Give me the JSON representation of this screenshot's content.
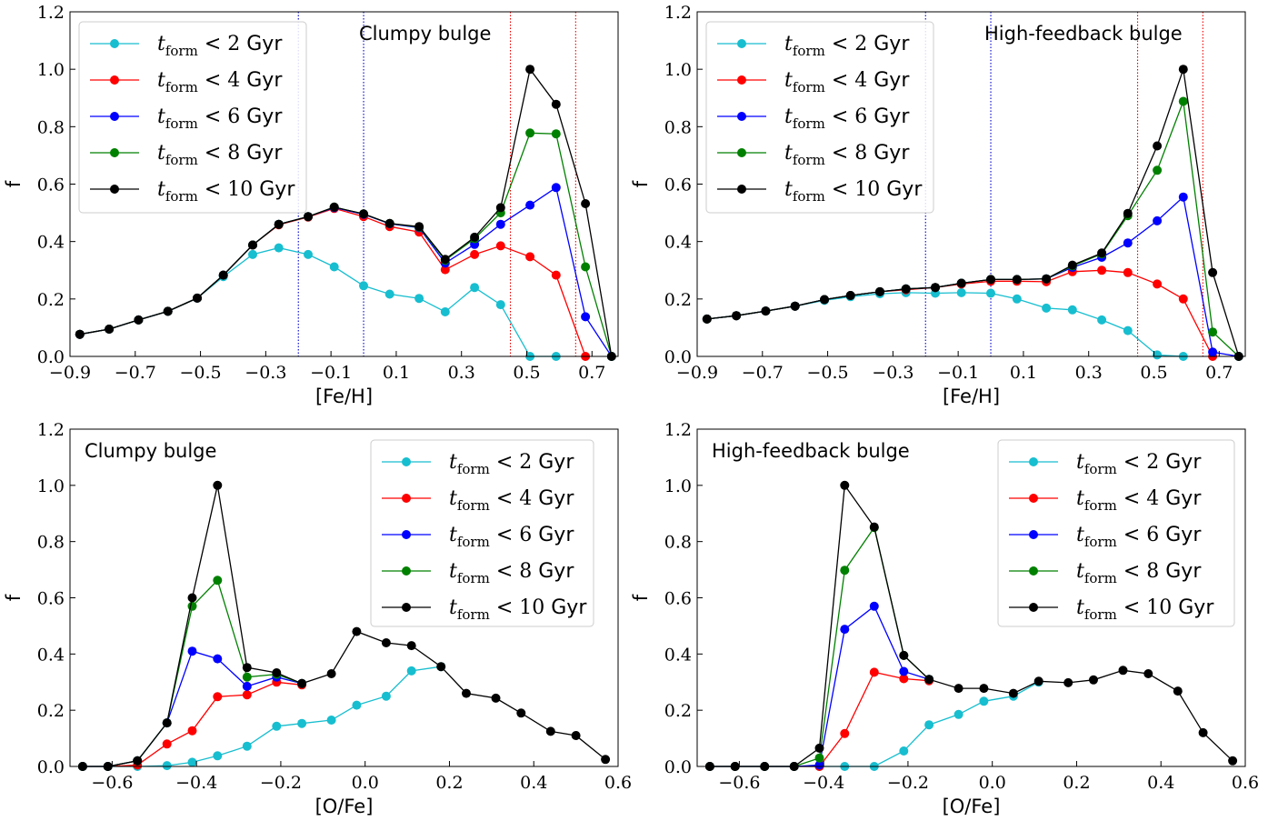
{
  "figure": {
    "colors": {
      "t2": "#17becf",
      "t4": "#ff0000",
      "t6": "#0000ff",
      "t8": "#008000",
      "t10": "#000000",
      "feh_line": "#0000cc",
      "feh_red_line": "#ee0000"
    }
  },
  "chart_data": [
    {
      "type": "line",
      "title": "Clumpy bulge",
      "xlabel": "[Fe/H]",
      "ylabel": "f",
      "xlim": [
        -0.9,
        0.78
      ],
      "ylim": [
        0,
        1.2
      ],
      "xticks": [
        -0.9,
        -0.7,
        -0.5,
        -0.3,
        -0.1,
        0.1,
        0.3,
        0.5,
        0.7
      ],
      "xtick_labels": [
        "−0.9",
        "−0.7",
        "−0.5",
        "−0.3",
        "−0.1",
        "0.1",
        "0.3",
        "0.5",
        "0.7"
      ],
      "yticks": [
        0,
        0.2,
        0.4,
        0.6,
        0.8,
        1.0,
        1.2
      ],
      "ytick_labels": [
        "0.0",
        "0.2",
        "0.4",
        "0.6",
        "0.8",
        "1.0",
        "1.2"
      ],
      "legend_position": "top-left",
      "vlines": [
        {
          "x": -0.2,
          "color": "feh_line"
        },
        {
          "x": 0.0,
          "color": "feh_line"
        },
        {
          "x": 0.45,
          "color": "feh_red_line"
        },
        {
          "x": 0.65,
          "color": "feh_red_line"
        }
      ],
      "x": [
        -0.87,
        -0.78,
        -0.69,
        -0.6,
        -0.51,
        -0.43,
        -0.34,
        -0.26,
        -0.17,
        -0.09,
        0.0,
        0.08,
        0.17,
        0.25,
        0.34,
        0.42,
        0.51,
        0.59,
        0.68,
        0.76
      ],
      "series": [
        {
          "name": "t2",
          "label_main": "t",
          "label_sub": "form",
          "label_rest": " < 2 ",
          "label_unit": "Gyr",
          "color": "t2",
          "values": [
            0.077,
            0.095,
            0.127,
            0.157,
            0.203,
            0.278,
            0.355,
            0.378,
            0.355,
            0.312,
            0.246,
            0.217,
            0.202,
            0.155,
            0.24,
            0.18,
            0.0,
            0.0,
            null,
            null
          ]
        },
        {
          "name": "t4",
          "label_main": "t",
          "label_sub": "form",
          "label_rest": " < 4 ",
          "label_unit": "Gyr",
          "color": "t4",
          "values": [
            0.077,
            0.095,
            0.127,
            0.157,
            0.203,
            0.283,
            0.388,
            0.458,
            0.485,
            0.515,
            0.487,
            0.452,
            0.433,
            0.302,
            0.355,
            0.385,
            0.347,
            0.283,
            0.0,
            null
          ]
        },
        {
          "name": "t6",
          "label_main": "t",
          "label_sub": "form",
          "label_rest": " < 6 ",
          "label_unit": "Gyr",
          "color": "t6",
          "values": [
            0.077,
            0.095,
            0.127,
            0.157,
            0.203,
            0.283,
            0.388,
            0.46,
            0.487,
            0.518,
            0.495,
            0.462,
            0.448,
            0.325,
            0.39,
            0.46,
            0.527,
            0.588,
            0.138,
            0.0
          ]
        },
        {
          "name": "t8",
          "label_main": "t",
          "label_sub": "form",
          "label_rest": " < 8 ",
          "label_unit": "Gyr",
          "color": "t8",
          "values": [
            0.077,
            0.095,
            0.127,
            0.157,
            0.203,
            0.283,
            0.388,
            0.46,
            0.487,
            0.52,
            0.496,
            0.463,
            0.45,
            0.335,
            0.41,
            0.5,
            0.778,
            0.775,
            0.312,
            0.0
          ]
        },
        {
          "name": "t10",
          "label_main": "t",
          "label_sub": "form",
          "label_rest": " < 10 ",
          "label_unit": "Gyr",
          "color": "t10",
          "values": [
            0.077,
            0.095,
            0.127,
            0.157,
            0.203,
            0.283,
            0.388,
            0.46,
            0.487,
            0.52,
            0.496,
            0.463,
            0.452,
            0.338,
            0.415,
            0.518,
            1.0,
            0.878,
            0.532,
            0.0
          ]
        }
      ]
    },
    {
      "type": "line",
      "title": "High-feedback bulge",
      "xlabel": "[Fe/H]",
      "ylabel": "f",
      "xlim": [
        -0.9,
        0.78
      ],
      "ylim": [
        0,
        1.2
      ],
      "xticks": [
        -0.9,
        -0.7,
        -0.5,
        -0.3,
        -0.1,
        0.1,
        0.3,
        0.5,
        0.7
      ],
      "xtick_labels": [
        "−0.9",
        "−0.7",
        "−0.5",
        "−0.3",
        "−0.1",
        "0.1",
        "0.3",
        "0.5",
        "0.7"
      ],
      "yticks": [
        0,
        0.2,
        0.4,
        0.6,
        0.8,
        1.0,
        1.2
      ],
      "ytick_labels": [
        "0.0",
        "0.2",
        "0.4",
        "0.6",
        "0.8",
        "1.0",
        "1.2"
      ],
      "legend_position": "top-left",
      "vlines": [
        {
          "x": -0.2,
          "color": "feh_line"
        },
        {
          "x": 0.0,
          "color": "feh_line"
        },
        {
          "x": 0.45,
          "color": "feh_red_line"
        },
        {
          "x": 0.65,
          "color": "feh_red_line"
        }
      ],
      "x": [
        -0.87,
        -0.78,
        -0.69,
        -0.6,
        -0.51,
        -0.43,
        -0.34,
        -0.26,
        -0.17,
        -0.09,
        0.0,
        0.08,
        0.17,
        0.25,
        0.34,
        0.42,
        0.51,
        0.59,
        0.68,
        0.76
      ],
      "series": [
        {
          "name": "t2",
          "label_main": "t",
          "label_sub": "form",
          "label_rest": " < 2 ",
          "label_unit": "Gyr",
          "color": "t2",
          "values": [
            0.13,
            0.142,
            0.158,
            0.175,
            0.195,
            0.208,
            0.218,
            0.222,
            0.22,
            0.222,
            0.22,
            0.2,
            0.168,
            0.162,
            0.127,
            0.09,
            0.005,
            0.0,
            null,
            null
          ]
        },
        {
          "name": "t4",
          "label_main": "t",
          "label_sub": "form",
          "label_rest": " < 4 ",
          "label_unit": "Gyr",
          "color": "t4",
          "values": [
            0.13,
            0.142,
            0.158,
            0.175,
            0.198,
            0.212,
            0.225,
            0.232,
            0.24,
            0.252,
            0.262,
            0.262,
            0.26,
            0.295,
            0.3,
            0.292,
            0.252,
            0.2,
            0.0,
            null
          ]
        },
        {
          "name": "t6",
          "label_main": "t",
          "label_sub": "form",
          "label_rest": " < 6 ",
          "label_unit": "Gyr",
          "color": "t6",
          "values": [
            0.13,
            0.142,
            0.158,
            0.175,
            0.198,
            0.212,
            0.225,
            0.235,
            0.24,
            0.255,
            0.268,
            0.268,
            0.27,
            0.31,
            0.345,
            0.395,
            0.472,
            0.555,
            0.015,
            0.0
          ]
        },
        {
          "name": "t8",
          "label_main": "t",
          "label_sub": "form",
          "label_rest": " < 8 ",
          "label_unit": "Gyr",
          "color": "t8",
          "values": [
            0.13,
            0.142,
            0.158,
            0.175,
            0.198,
            0.212,
            0.225,
            0.235,
            0.24,
            0.255,
            0.268,
            0.268,
            0.27,
            0.315,
            0.357,
            0.49,
            0.648,
            0.888,
            0.085,
            0.0
          ]
        },
        {
          "name": "t10",
          "label_main": "t",
          "label_sub": "form",
          "label_rest": " < 10 ",
          "label_unit": "Gyr",
          "color": "t10",
          "values": [
            0.13,
            0.142,
            0.158,
            0.175,
            0.198,
            0.212,
            0.225,
            0.235,
            0.24,
            0.255,
            0.268,
            0.268,
            0.27,
            0.318,
            0.36,
            0.498,
            0.733,
            1.0,
            0.292,
            0.0
          ]
        }
      ]
    },
    {
      "type": "line",
      "title": "Clumpy bulge",
      "xlabel": "[O/Fe]",
      "ylabel": "f",
      "xlim": [
        -0.7,
        0.6
      ],
      "ylim": [
        0,
        1.2
      ],
      "xticks": [
        -0.6,
        -0.4,
        -0.2,
        0.0,
        0.2,
        0.4,
        0.6
      ],
      "xtick_labels": [
        "−0.6",
        "−0.4",
        "−0.2",
        "0.0",
        "0.2",
        "0.4",
        "0.6"
      ],
      "yticks": [
        0,
        0.2,
        0.4,
        0.6,
        0.8,
        1.0,
        1.2
      ],
      "ytick_labels": [
        "0.0",
        "0.2",
        "0.4",
        "0.6",
        "0.8",
        "1.0",
        "1.2"
      ],
      "legend_position": "top-right",
      "vlines": [],
      "x": [
        -0.67,
        -0.61,
        -0.54,
        -0.47,
        -0.41,
        -0.35,
        -0.28,
        -0.21,
        -0.15,
        -0.08,
        -0.02,
        0.05,
        0.11,
        0.18,
        0.24,
        0.31,
        0.37,
        0.44,
        0.5,
        0.57
      ],
      "series": [
        {
          "name": "t2",
          "label_main": "t",
          "label_sub": "form",
          "label_rest": " < 2 ",
          "label_unit": "Gyr",
          "color": "t2",
          "values": [
            0.0,
            0.0,
            0.0,
            0.003,
            0.015,
            0.038,
            0.072,
            0.143,
            0.153,
            0.165,
            0.218,
            0.25,
            0.34,
            0.355,
            null,
            null,
            null,
            null,
            null,
            null
          ]
        },
        {
          "name": "t4",
          "label_main": "t",
          "label_sub": "form",
          "label_rest": " < 4 ",
          "label_unit": "Gyr",
          "color": "t4",
          "values": [
            0.0,
            0.0,
            0.005,
            0.08,
            0.127,
            0.248,
            0.255,
            0.3,
            0.29,
            null,
            null,
            null,
            null,
            null,
            null,
            null,
            null,
            null,
            null,
            null
          ]
        },
        {
          "name": "t6",
          "label_main": "t",
          "label_sub": "form",
          "label_rest": " < 6 ",
          "label_unit": "Gyr",
          "color": "t6",
          "values": [
            0.0,
            0.0,
            0.02,
            0.155,
            0.41,
            0.383,
            0.285,
            0.318,
            0.295,
            null,
            null,
            null,
            null,
            null,
            null,
            null,
            null,
            null,
            null,
            null
          ]
        },
        {
          "name": "t8",
          "label_main": "t",
          "label_sub": "form",
          "label_rest": " < 8 ",
          "label_unit": "Gyr",
          "color": "t8",
          "values": [
            0.0,
            0.0,
            0.02,
            0.155,
            0.57,
            0.662,
            0.318,
            0.328,
            0.295,
            null,
            null,
            null,
            null,
            null,
            null,
            null,
            null,
            null,
            null,
            null
          ]
        },
        {
          "name": "t10",
          "label_main": "t",
          "label_sub": "form",
          "label_rest": " < 10 ",
          "label_unit": "Gyr",
          "color": "t10",
          "values": [
            0.0,
            0.0,
            0.02,
            0.155,
            0.6,
            1.0,
            0.352,
            0.333,
            0.295,
            0.33,
            0.48,
            0.44,
            0.43,
            0.355,
            0.26,
            0.243,
            0.19,
            0.125,
            0.11,
            0.025
          ]
        }
      ]
    },
    {
      "type": "line",
      "title": "High-feedback bulge",
      "xlabel": "[O/Fe]",
      "ylabel": "f",
      "xlim": [
        -0.7,
        0.6
      ],
      "ylim": [
        0,
        1.2
      ],
      "xticks": [
        -0.6,
        -0.4,
        -0.2,
        0.0,
        0.2,
        0.4,
        0.6
      ],
      "xtick_labels": [
        "−0.6",
        "−0.4",
        "−0.2",
        "0.0",
        "0.2",
        "0.4",
        "0.6"
      ],
      "yticks": [
        0,
        0.2,
        0.4,
        0.6,
        0.8,
        1.0,
        1.2
      ],
      "ytick_labels": [
        "0.0",
        "0.2",
        "0.4",
        "0.6",
        "0.8",
        "1.0",
        "1.2"
      ],
      "legend_position": "top-right",
      "vlines": [],
      "x": [
        -0.67,
        -0.61,
        -0.54,
        -0.47,
        -0.41,
        -0.35,
        -0.28,
        -0.21,
        -0.15,
        -0.08,
        -0.02,
        0.05,
        0.11,
        0.18,
        0.24,
        0.31,
        0.37,
        0.44,
        0.5,
        0.57
      ],
      "series": [
        {
          "name": "t2",
          "label_main": "t",
          "label_sub": "form",
          "label_rest": " < 2 ",
          "label_unit": "Gyr",
          "color": "t2",
          "values": [
            0.0,
            0.0,
            0.0,
            0.0,
            0.0,
            0.0,
            0.0,
            0.055,
            0.148,
            0.185,
            0.232,
            0.25,
            0.3,
            null,
            null,
            null,
            null,
            null,
            null,
            null
          ]
        },
        {
          "name": "t4",
          "label_main": "t",
          "label_sub": "form",
          "label_rest": " < 4 ",
          "label_unit": "Gyr",
          "color": "t4",
          "values": [
            0.0,
            0.0,
            0.0,
            0.0,
            0.0,
            0.117,
            0.335,
            0.312,
            0.305,
            null,
            null,
            null,
            null,
            null,
            null,
            null,
            null,
            null,
            null,
            null
          ]
        },
        {
          "name": "t6",
          "label_main": "t",
          "label_sub": "form",
          "label_rest": " < 6 ",
          "label_unit": "Gyr",
          "color": "t6",
          "values": [
            0.0,
            0.0,
            0.0,
            0.0,
            0.005,
            0.488,
            0.57,
            0.338,
            0.31,
            null,
            null,
            null,
            null,
            null,
            null,
            null,
            null,
            null,
            null,
            null
          ]
        },
        {
          "name": "t8",
          "label_main": "t",
          "label_sub": "form",
          "label_rest": " < 8 ",
          "label_unit": "Gyr",
          "color": "t8",
          "values": [
            0.0,
            0.0,
            0.0,
            0.0,
            0.03,
            0.698,
            0.85,
            0.395,
            0.31,
            null,
            null,
            null,
            null,
            null,
            null,
            null,
            null,
            null,
            null,
            null
          ]
        },
        {
          "name": "t10",
          "label_main": "t",
          "label_sub": "form",
          "label_rest": " < 10 ",
          "label_unit": "Gyr",
          "color": "t10",
          "values": [
            0.0,
            0.0,
            0.0,
            0.0,
            0.065,
            1.0,
            0.852,
            0.395,
            0.31,
            0.278,
            0.278,
            0.26,
            0.303,
            0.298,
            0.308,
            0.342,
            0.33,
            0.268,
            0.12,
            0.02
          ]
        }
      ]
    }
  ]
}
